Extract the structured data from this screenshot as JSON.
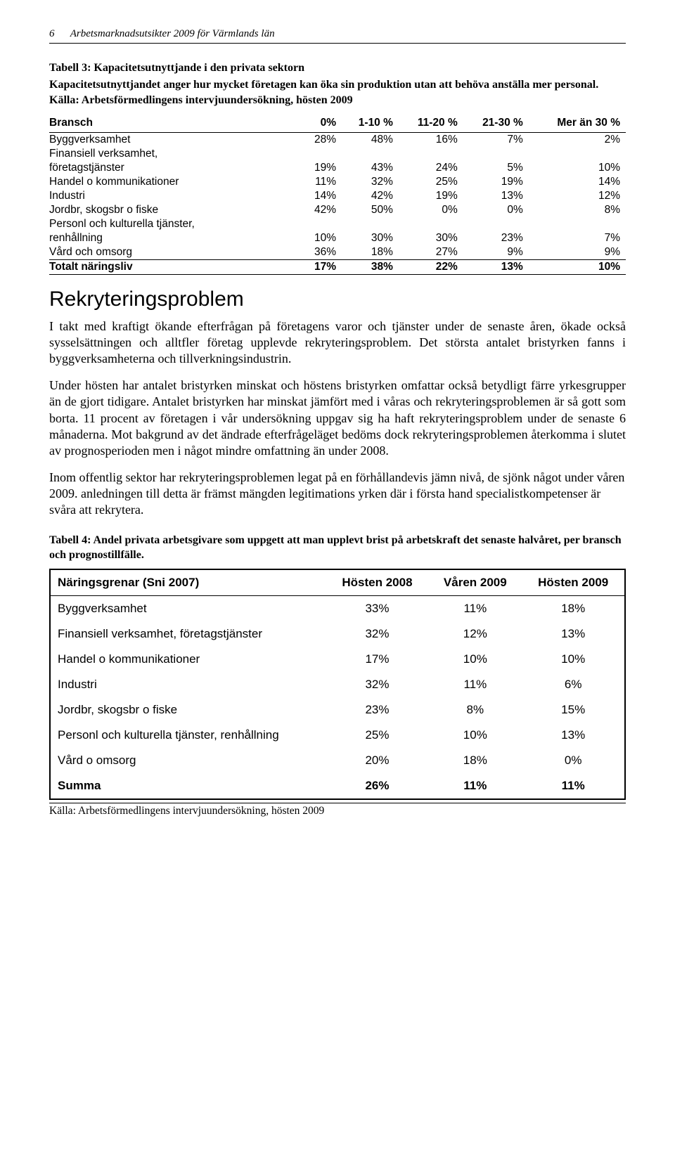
{
  "header": {
    "page_number": "6",
    "running_title": "Arbetsmarknadsutsikter 2009 för Värmlands län"
  },
  "table3": {
    "title": "Tabell 3: Kapacitetsutnyttjande i den privata sektorn",
    "subtitle": "Kapacitetsutnyttjandet anger hur mycket företagen kan öka sin produktion utan att behöva anställa mer personal. Källa: Arbetsförmedlingens intervjuundersökning, hösten 2009",
    "columns": [
      "Bransch",
      "0%",
      "1-10 %",
      "11-20 %",
      "21-30 %",
      "Mer än 30 %"
    ],
    "rows": [
      {
        "label": "Byggverksamhet",
        "v": [
          "28%",
          "48%",
          "16%",
          "7%",
          "2%"
        ]
      },
      {
        "label": "Finansiell verksamhet, företagstjänster",
        "v": [
          "19%",
          "43%",
          "24%",
          "5%",
          "10%"
        ]
      },
      {
        "label": "Handel o kommunikationer",
        "v": [
          "11%",
          "32%",
          "25%",
          "19%",
          "14%"
        ]
      },
      {
        "label": "Industri",
        "v": [
          "14%",
          "42%",
          "19%",
          "13%",
          "12%"
        ]
      },
      {
        "label": "Jordbr, skogsbr o fiske",
        "v": [
          "42%",
          "50%",
          "0%",
          "0%",
          "8%"
        ]
      },
      {
        "label": "Personl och kulturella tjänster, renhållning",
        "v": [
          "10%",
          "30%",
          "30%",
          "23%",
          "7%"
        ]
      },
      {
        "label": "Vård och omsorg",
        "v": [
          "36%",
          "18%",
          "27%",
          "9%",
          "9%"
        ]
      }
    ],
    "total": {
      "label": "Totalt näringsliv",
      "v": [
        "17%",
        "38%",
        "22%",
        "13%",
        "10%"
      ]
    }
  },
  "section": {
    "heading": "Rekryteringsproblem",
    "p1": "I takt med kraftigt ökande efterfrågan på företagens varor och tjänster under de senaste åren, ökade också sysselsättningen och alltfler företag upplevde rekryteringsproblem. Det största antalet bristyrken fanns i byggverksamheterna och tillverkningsindustrin.",
    "p2": "Under hösten har antalet bristyrken minskat och höstens bristyrken omfattar också betydligt färre yrkesgrupper än de gjort tidigare. Antalet bristyrken har minskat jämfört med i våras och rekryteringsproblemen är så gott som borta. 11 procent av företagen i vår undersökning uppgav sig ha haft rekryteringsproblem under de senaste 6 månaderna. Mot bakgrund av det ändrade efterfrågeläget bedöms dock rekryteringsproblemen återkomma i slutet av prognosperioden men i något mindre omfattning än under 2008.",
    "p3": "Inom offentlig sektor har rekryteringsproblemen legat på en förhållandevis jämn nivå, de sjönk något under våren 2009. anledningen till detta är främst mängden legitimations yrken där i första hand specialistkompetenser är svåra att rekrytera."
  },
  "table4": {
    "caption": "Tabell 4: Andel privata arbetsgivare som uppgett att man upplevt brist på arbetskraft det senaste halvåret, per bransch och prognostillfälle.",
    "columns": [
      "Näringsgrenar  (Sni 2007)",
      "Hösten 2008",
      "Våren 2009",
      "Hösten 2009"
    ],
    "rows": [
      {
        "label": "Byggverksamhet",
        "v": [
          "33%",
          "11%",
          "18%"
        ]
      },
      {
        "label": "Finansiell verksamhet, företagstjänster",
        "v": [
          "32%",
          "12%",
          "13%"
        ]
      },
      {
        "label": "Handel o kommunikationer",
        "v": [
          "17%",
          "10%",
          "10%"
        ]
      },
      {
        "label": "Industri",
        "v": [
          "32%",
          "11%",
          "6%"
        ]
      },
      {
        "label": "Jordbr, skogsbr o fiske",
        "v": [
          "23%",
          "8%",
          "15%"
        ]
      },
      {
        "label": "Personl och kulturella tjänster, renhållning",
        "v": [
          "25%",
          "10%",
          "13%"
        ]
      },
      {
        "label": "Vård o omsorg",
        "v": [
          "20%",
          "18%",
          "0%"
        ]
      }
    ],
    "total": {
      "label": "Summa",
      "v": [
        "26%",
        "11%",
        "11%"
      ]
    },
    "source": "Källa: Arbetsförmedlingens intervjuundersökning, hösten 2009"
  }
}
